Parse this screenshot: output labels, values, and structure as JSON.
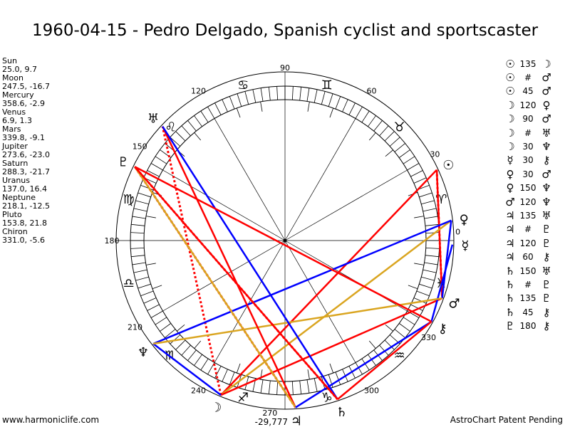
{
  "title": "1960-04-15 - Pedro Delgado, Spanish cyclist and sportscaster",
  "planets": [
    {
      "name": "Sun",
      "coords": "25.0, 9.7",
      "lon": 25.0,
      "glyph": "☉"
    },
    {
      "name": "Moon",
      "coords": "247.5, -16.7",
      "lon": 247.5,
      "glyph": "☽"
    },
    {
      "name": "Mercury",
      "coords": "358.6, -2.9",
      "lon": 358.6,
      "glyph": "☿"
    },
    {
      "name": "Venus",
      "coords": "6.9, 1.3",
      "lon": 6.9,
      "glyph": "♀"
    },
    {
      "name": "Mars",
      "coords": "339.8, -9.1",
      "lon": 339.8,
      "glyph": "♂"
    },
    {
      "name": "Jupiter",
      "coords": "273.6, -23.0",
      "lon": 273.6,
      "glyph": "♃"
    },
    {
      "name": "Saturn",
      "coords": "288.3, -21.7",
      "lon": 288.3,
      "glyph": "♄"
    },
    {
      "name": "Uranus",
      "coords": "137.0, 16.4",
      "lon": 137.0,
      "glyph": "♅"
    },
    {
      "name": "Neptune",
      "coords": "218.1, -12.5",
      "lon": 218.1,
      "glyph": "♆"
    },
    {
      "name": "Pluto",
      "coords": "153.8, 21.8",
      "lon": 153.8,
      "glyph": "♇"
    },
    {
      "name": "Chiron",
      "coords": "331.0, -5.6",
      "lon": 331.0,
      "glyph": "⚷"
    }
  ],
  "aspects": [
    {
      "p1": "Sun",
      "g1": "☉",
      "type": "135",
      "p2": "Moon",
      "g2": "☽"
    },
    {
      "p1": "Sun",
      "g1": "☉",
      "type": "#",
      "p2": "Mars",
      "g2": "♂"
    },
    {
      "p1": "Sun",
      "g1": "☉",
      "type": "45",
      "p2": "Mars",
      "g2": "♂"
    },
    {
      "p1": "Moon",
      "g1": "☽",
      "type": "120",
      "p2": "Venus",
      "g2": "♀"
    },
    {
      "p1": "Moon",
      "g1": "☽",
      "type": "90",
      "p2": "Mars",
      "g2": "♂"
    },
    {
      "p1": "Moon",
      "g1": "☽",
      "type": "#",
      "p2": "Uranus",
      "g2": "♅"
    },
    {
      "p1": "Moon",
      "g1": "☽",
      "type": "30",
      "p2": "Neptune",
      "g2": "♆"
    },
    {
      "p1": "Mercury",
      "g1": "☿",
      "type": "30",
      "p2": "Chiron",
      "g2": "⚷"
    },
    {
      "p1": "Venus",
      "g1": "♀",
      "type": "30",
      "p2": "Mars",
      "g2": "♂"
    },
    {
      "p1": "Venus",
      "g1": "♀",
      "type": "150",
      "p2": "Neptune",
      "g2": "♆"
    },
    {
      "p1": "Mars",
      "g1": "♂",
      "type": "120",
      "p2": "Neptune",
      "g2": "♆"
    },
    {
      "p1": "Jupiter",
      "g1": "♃",
      "type": "135",
      "p2": "Uranus",
      "g2": "♅"
    },
    {
      "p1": "Jupiter",
      "g1": "♃",
      "type": "#",
      "p2": "Pluto",
      "g2": "♇"
    },
    {
      "p1": "Jupiter",
      "g1": "♃",
      "type": "120",
      "p2": "Pluto",
      "g2": "♇"
    },
    {
      "p1": "Jupiter",
      "g1": "♃",
      "type": "60",
      "p2": "Chiron",
      "g2": "⚷"
    },
    {
      "p1": "Saturn",
      "g1": "♄",
      "type": "150",
      "p2": "Uranus",
      "g2": "♅"
    },
    {
      "p1": "Saturn",
      "g1": "♄",
      "type": "#",
      "p2": "Pluto",
      "g2": "♇"
    },
    {
      "p1": "Saturn",
      "g1": "♄",
      "type": "135",
      "p2": "Pluto",
      "g2": "♇"
    },
    {
      "p1": "Saturn",
      "g1": "♄",
      "type": "45",
      "p2": "Chiron",
      "g2": "⚷"
    },
    {
      "p1": "Pluto",
      "g1": "♇",
      "type": "180",
      "p2": "Chiron",
      "g2": "⚷"
    }
  ],
  "signs": [
    "♈",
    "♉",
    "♊",
    "♋",
    "♌",
    "♍",
    "♎",
    "♏",
    "♐",
    "♑",
    "♒",
    "♓"
  ],
  "degree_labels": [
    "0",
    "30",
    "60",
    "90",
    "120",
    "150",
    "180",
    "210",
    "240",
    "270",
    "300",
    "330"
  ],
  "bottom_value": "-29,777",
  "colors": {
    "hard": "#ff0000",
    "soft": "#0000ff",
    "trine": "#daa520"
  },
  "footer": {
    "left": "www.harmoniclife.com",
    "right": "AstroChart Patent Pending"
  }
}
